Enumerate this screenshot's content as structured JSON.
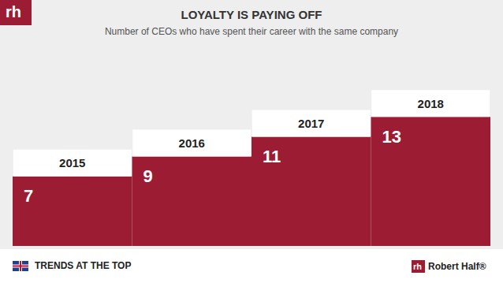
{
  "chart_data": {
    "type": "bar",
    "title": "LOYALTY IS PAYING OFF",
    "subtitle": "Number of CEOs who have spent their career with the same company",
    "categories": [
      "2015",
      "2016",
      "2017",
      "2018"
    ],
    "values": [
      7,
      9,
      11,
      13
    ],
    "color": "#9b1c33",
    "ylim": [
      0,
      20
    ],
    "yticks": [
      0,
      5,
      10,
      15,
      20
    ],
    "grid": false,
    "data_labels": true,
    "tick_labels": false
  },
  "logo": "rh",
  "footer": {
    "left": "TRENDS AT THE TOP",
    "right": "Robert Half®"
  }
}
